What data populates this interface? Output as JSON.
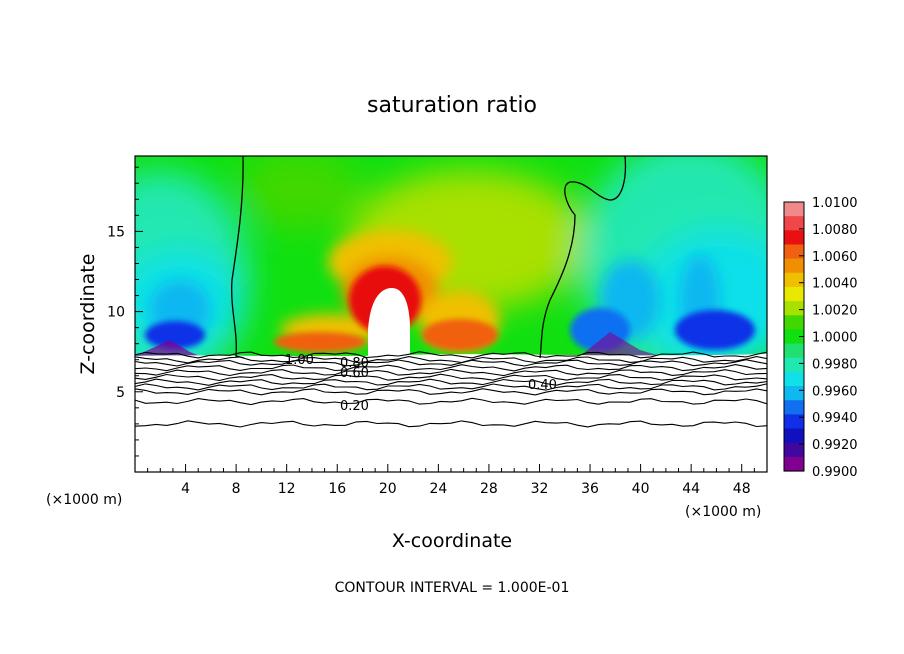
{
  "chart_data": {
    "type": "heatmap",
    "title": "saturation ratio",
    "xlabel": "X-coordinate",
    "ylabel": "Z-coordinate",
    "x_unit": "(×1000 m)",
    "x_unit_right": "(×1000 m)",
    "xlim": [
      0,
      50
    ],
    "ylim": [
      0,
      19.7
    ],
    "x_ticks": [
      4,
      8,
      12,
      16,
      20,
      24,
      28,
      32,
      36,
      40,
      44,
      48
    ],
    "y_ticks": [
      5,
      10,
      15
    ],
    "colorbar": {
      "min": 0.99,
      "max": 1.01,
      "labels": [
        "1.0100",
        "1.0080",
        "1.0060",
        "1.0040",
        "1.0020",
        "1.0000",
        "0.9980",
        "0.9960",
        "0.9940",
        "0.9920",
        "0.9900"
      ],
      "colors": [
        "#f08a8a",
        "#f04848",
        "#e81010",
        "#f06010",
        "#f09000",
        "#f0c000",
        "#e8e800",
        "#a8e000",
        "#40d800",
        "#10e010",
        "#20e070",
        "#20e8b0",
        "#10e0e8",
        "#10b8f0",
        "#1070f0",
        "#1030e8",
        "#1010c0",
        "#4008a0",
        "#800090"
      ]
    },
    "contour_labels": [
      "1.00",
      "0.80",
      "0.60",
      "0.40",
      "0.20"
    ],
    "contour_interval_text": "CONTOUR INTERVAL = 1.000E-01",
    "grid": false,
    "legend": "right (colorbar)"
  }
}
